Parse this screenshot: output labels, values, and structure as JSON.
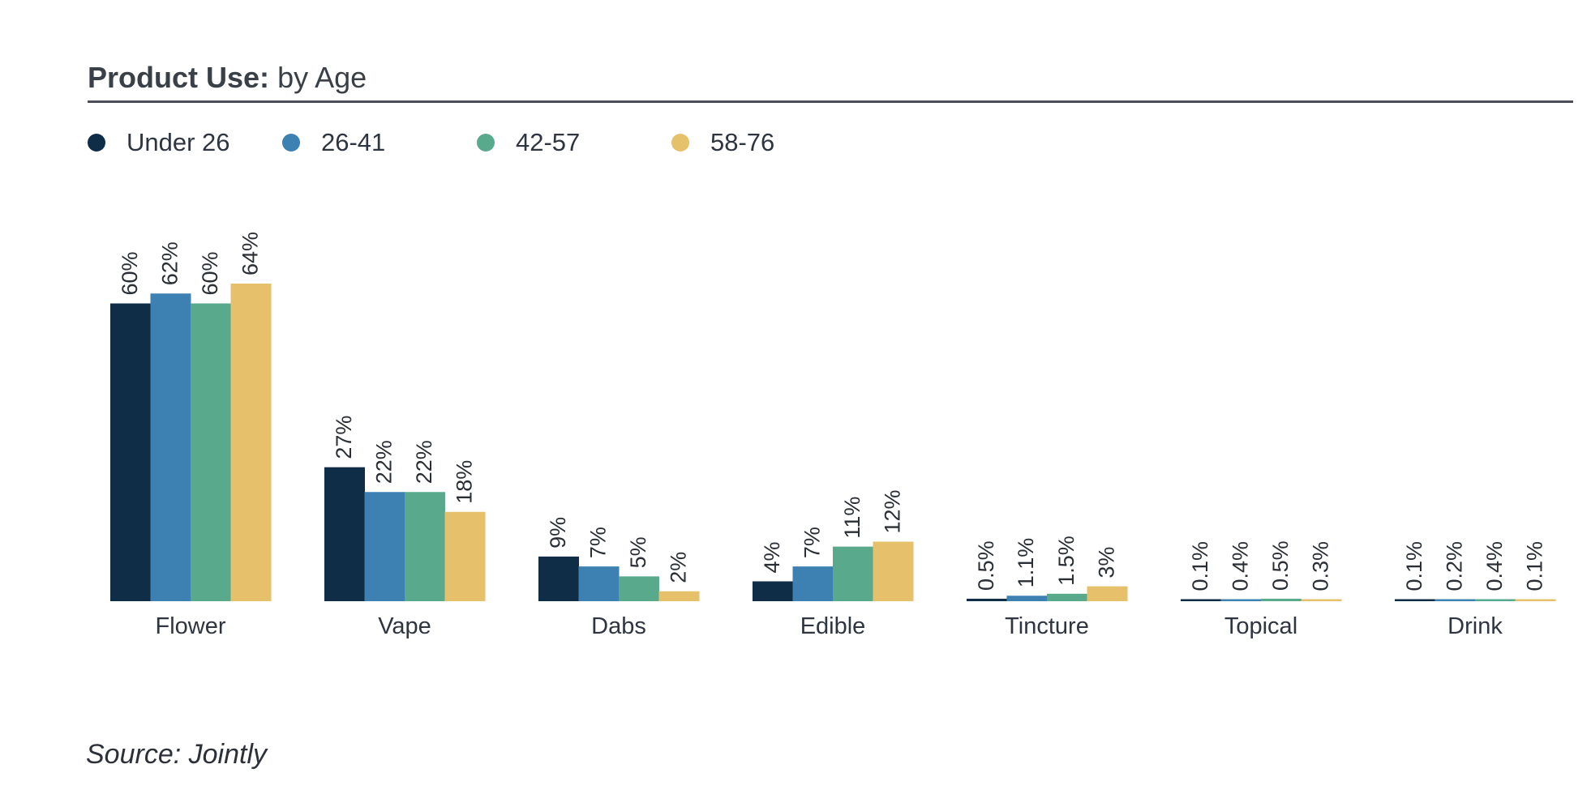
{
  "chart_data": {
    "type": "bar",
    "title_bold": "Product Use:",
    "title_rest": "by Age",
    "source": "Source: Jointly",
    "categories": [
      "Flower",
      "Vape",
      "Dabs",
      "Edible",
      "Tincture",
      "Topical",
      "Drink"
    ],
    "series": [
      {
        "name": "Under 26",
        "color": "#102d48",
        "values": [
          60,
          27,
          9,
          4,
          0.5,
          0.1,
          0.1
        ],
        "labels": [
          "60%",
          "27%",
          "9%",
          "4%",
          "0.5%",
          "0.1%",
          "0.1%"
        ]
      },
      {
        "name": "26-41",
        "color": "#3d80b2",
        "values": [
          62,
          22,
          7,
          7,
          1.1,
          0.4,
          0.2
        ],
        "labels": [
          "62%",
          "22%",
          "7%",
          "7%",
          "1.1%",
          "0.4%",
          "0.2%"
        ]
      },
      {
        "name": "42-57",
        "color": "#59a98c",
        "values": [
          60,
          22,
          5,
          11,
          1.5,
          0.5,
          0.4
        ],
        "labels": [
          "60%",
          "22%",
          "5%",
          "11%",
          "1.5%",
          "0.5%",
          "0.4%"
        ]
      },
      {
        "name": "58-76",
        "color": "#e7c06c",
        "values": [
          64,
          18,
          2,
          12,
          3,
          0.3,
          0.1
        ],
        "labels": [
          "64%",
          "18%",
          "2%",
          "12%",
          "3%",
          "0.3%",
          "0.1%"
        ]
      }
    ],
    "ylim": [
      0,
      64
    ],
    "grid": false,
    "legend_position": "top-left",
    "data_labels": "rotated above bars"
  }
}
